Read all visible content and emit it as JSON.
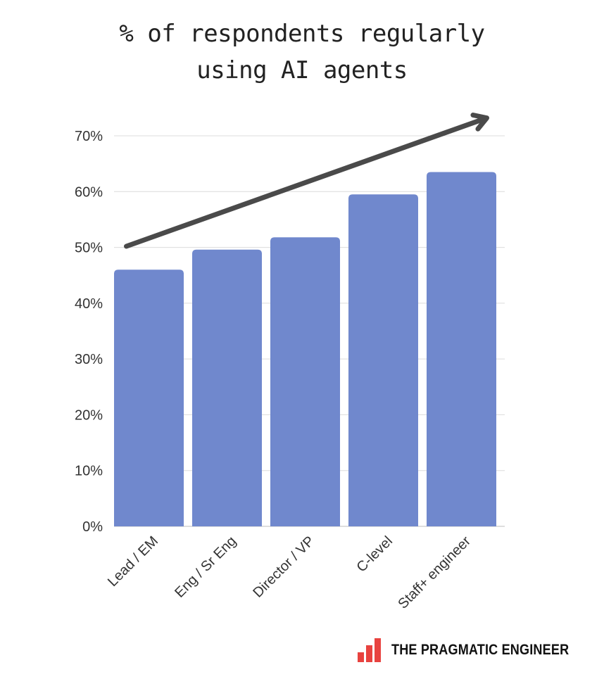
{
  "chart_data": {
    "type": "bar",
    "title_lines": [
      "% of respondents regularly",
      "using AI agents"
    ],
    "categories": [
      "Lead / EM",
      "Eng / Sr Eng",
      "Director / VP",
      "C-level",
      "Staff+ engineer"
    ],
    "values": [
      46,
      49.6,
      51.8,
      59.5,
      63.5
    ],
    "value_unit": "%",
    "ylim": [
      0,
      70
    ],
    "y_ticks": [
      0,
      10,
      20,
      30,
      40,
      50,
      60,
      70
    ],
    "y_tick_labels": [
      "0%",
      "10%",
      "20%",
      "30%",
      "40%",
      "50%",
      "60%",
      "70%"
    ],
    "xlabel": "",
    "ylabel": "",
    "grid": true,
    "bar_color": "#7088cd",
    "annotation": {
      "type": "trend-arrow",
      "from": {
        "category": "Lead / EM",
        "value": 50.2
      },
      "to": {
        "category": "Staff+ engineer",
        "value": 73.2
      },
      "color": "#4a4a4a"
    }
  },
  "brand": {
    "name": "THE PRAGMATIC ENGINEER",
    "logo": "bar-chart-logo-icon",
    "color": "#e8423f"
  }
}
